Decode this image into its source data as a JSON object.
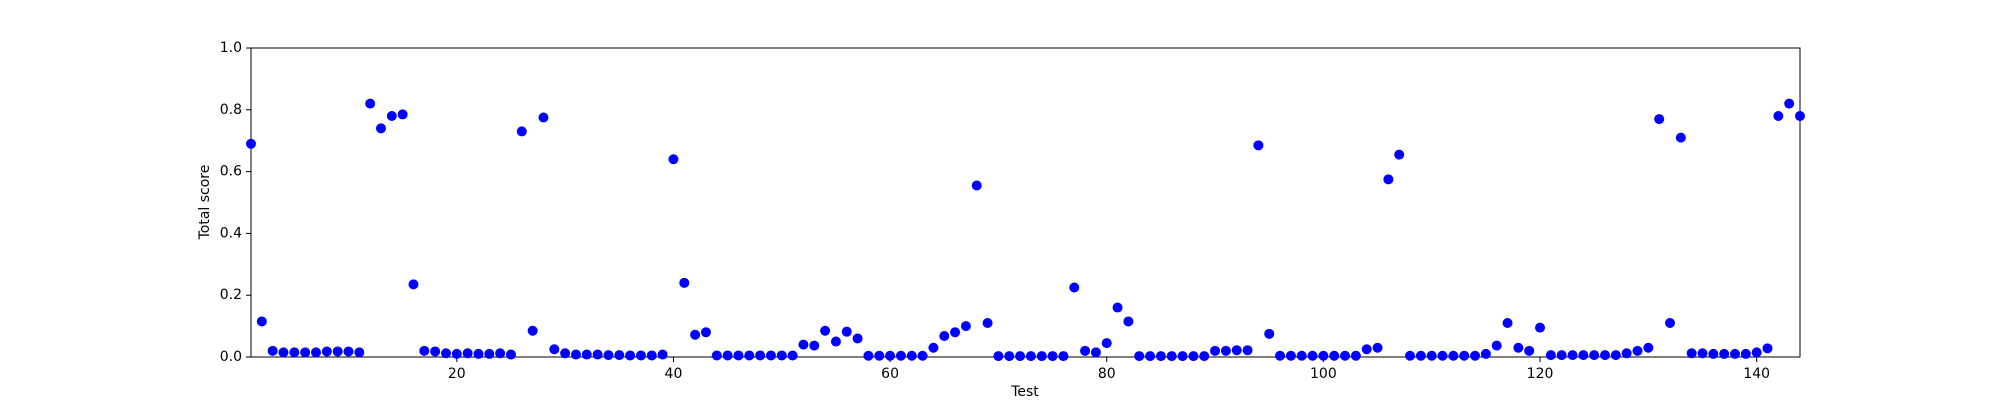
{
  "chart_data": {
    "type": "scatter",
    "x_label": "Test",
    "y_label": "Total score",
    "x": [
      1,
      2,
      3,
      4,
      5,
      6,
      7,
      8,
      9,
      10,
      11,
      12,
      13,
      14,
      15,
      16,
      17,
      18,
      19,
      20,
      21,
      22,
      23,
      24,
      25,
      26,
      27,
      28,
      29,
      30,
      31,
      32,
      33,
      34,
      35,
      36,
      37,
      38,
      39,
      40,
      41,
      42,
      43,
      44,
      45,
      46,
      47,
      48,
      49,
      50,
      51,
      52,
      53,
      54,
      55,
      56,
      57,
      58,
      59,
      60,
      61,
      62,
      63,
      64,
      65,
      66,
      67,
      68,
      69,
      70,
      71,
      72,
      73,
      74,
      75,
      76,
      77,
      78,
      79,
      80,
      81,
      82,
      83,
      84,
      85,
      86,
      87,
      88,
      89,
      90,
      91,
      92,
      93,
      94,
      95,
      96,
      97,
      98,
      99,
      100,
      101,
      102,
      103,
      104,
      105,
      106,
      107,
      108,
      109,
      110,
      111,
      112,
      113,
      114,
      115,
      116,
      117,
      118,
      119,
      120,
      121,
      122,
      123,
      124,
      125,
      126,
      127,
      128,
      129,
      130,
      131,
      132,
      133,
      134,
      135,
      136,
      137,
      138,
      139,
      140,
      141,
      142,
      143,
      144
    ],
    "values": [
      0.69,
      0.115,
      0.02,
      0.015,
      0.015,
      0.015,
      0.015,
      0.018,
      0.018,
      0.018,
      0.015,
      0.82,
      0.74,
      0.78,
      0.785,
      0.235,
      0.02,
      0.018,
      0.012,
      0.01,
      0.012,
      0.01,
      0.01,
      0.012,
      0.008,
      0.73,
      0.085,
      0.775,
      0.025,
      0.012,
      0.008,
      0.008,
      0.008,
      0.006,
      0.006,
      0.005,
      0.005,
      0.005,
      0.008,
      0.64,
      0.24,
      0.072,
      0.08,
      0.005,
      0.005,
      0.005,
      0.005,
      0.005,
      0.005,
      0.005,
      0.005,
      0.04,
      0.037,
      0.085,
      0.05,
      0.082,
      0.06,
      0.004,
      0.004,
      0.004,
      0.004,
      0.004,
      0.004,
      0.03,
      0.068,
      0.08,
      0.1,
      0.555,
      0.11,
      0.003,
      0.003,
      0.003,
      0.003,
      0.003,
      0.003,
      0.003,
      0.225,
      0.02,
      0.015,
      0.045,
      0.16,
      0.115,
      0.003,
      0.003,
      0.003,
      0.003,
      0.003,
      0.003,
      0.003,
      0.02,
      0.02,
      0.022,
      0.022,
      0.685,
      0.075,
      0.004,
      0.004,
      0.004,
      0.004,
      0.004,
      0.004,
      0.004,
      0.004,
      0.025,
      0.03,
      0.575,
      0.655,
      0.004,
      0.004,
      0.004,
      0.004,
      0.004,
      0.004,
      0.004,
      0.01,
      0.037,
      0.11,
      0.03,
      0.02,
      0.095,
      0.006,
      0.006,
      0.006,
      0.006,
      0.006,
      0.006,
      0.006,
      0.012,
      0.02,
      0.03,
      0.77,
      0.11,
      0.71,
      0.012,
      0.012,
      0.01,
      0.01,
      0.01,
      0.01,
      0.015,
      0.028,
      0.78,
      0.82,
      0.78
    ],
    "color": "#0000ff",
    "xlim": [
      1,
      144
    ],
    "xticks": [
      20,
      40,
      60,
      80,
      100,
      120,
      140
    ],
    "ylim": [
      0,
      1
    ],
    "yticks": [
      {
        "value": 0,
        "label": "0.0"
      },
      0.2,
      0.4,
      0.6,
      0.8,
      {
        "value": 1,
        "label": "1.0"
      }
    ],
    "grid": false
  }
}
